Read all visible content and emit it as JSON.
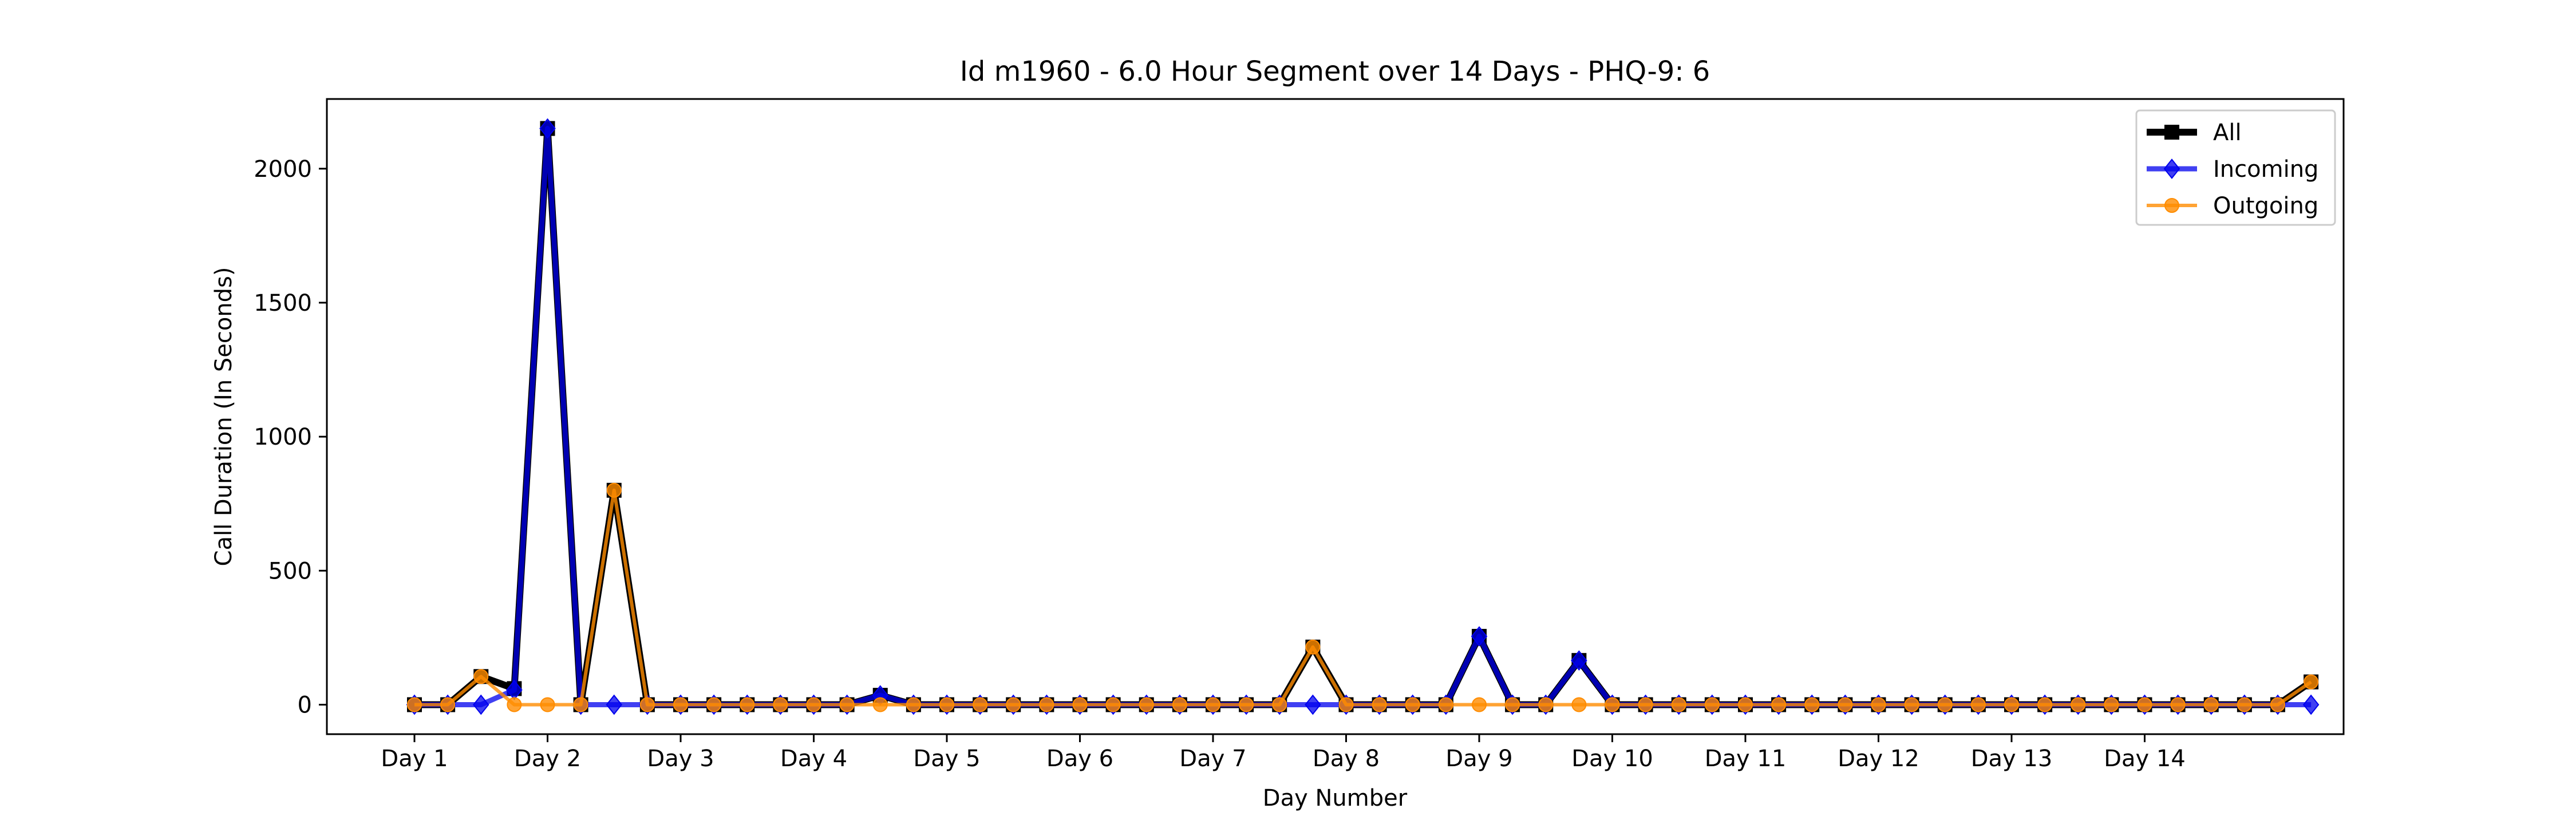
{
  "chart_data": {
    "type": "line",
    "title": "Id m1960 - 6.0 Hour Segment over 14 Days - PHQ-9: 6",
    "xlabel": "Day Number",
    "ylabel": "Call Duration (In Seconds)",
    "x_tick_labels": [
      "Day 1",
      "Day 2",
      "Day 3",
      "Day 4",
      "Day 5",
      "Day 6",
      "Day 7",
      "Day 8",
      "Day 9",
      "Day 10",
      "Day 11",
      "Day 12",
      "Day 13",
      "Day 14"
    ],
    "y_ticks": [
      0,
      500,
      1000,
      1500,
      2000
    ],
    "ylim": [
      -110,
      2260
    ],
    "x_points_per_day": 4,
    "grid": false,
    "legend_position": "upper right",
    "series": [
      {
        "name": "All",
        "color": "#000000",
        "marker": "square",
        "values": [
          0,
          0,
          105,
          60,
          2150,
          0,
          800,
          0,
          0,
          0,
          0,
          0,
          0,
          0,
          35,
          0,
          0,
          0,
          0,
          0,
          0,
          0,
          0,
          0,
          0,
          0,
          0,
          215,
          0,
          0,
          0,
          0,
          255,
          0,
          0,
          165,
          0,
          0,
          0,
          0,
          0,
          0,
          0,
          0,
          0,
          0,
          0,
          0,
          0,
          0,
          0,
          0,
          0,
          0,
          0,
          0,
          0,
          85
        ]
      },
      {
        "name": "Incoming",
        "color": "#0000ee",
        "marker": "diamond",
        "values": [
          0,
          0,
          0,
          55,
          2150,
          0,
          0,
          0,
          0,
          0,
          0,
          0,
          0,
          0,
          35,
          0,
          0,
          0,
          0,
          0,
          0,
          0,
          0,
          0,
          0,
          0,
          0,
          0,
          0,
          0,
          0,
          0,
          255,
          0,
          0,
          165,
          0,
          0,
          0,
          0,
          0,
          0,
          0,
          0,
          0,
          0,
          0,
          0,
          0,
          0,
          0,
          0,
          0,
          0,
          0,
          0,
          0,
          0
        ]
      },
      {
        "name": "Outgoing",
        "color": "#ff8c00",
        "marker": "circle",
        "values": [
          0,
          0,
          105,
          0,
          0,
          0,
          800,
          0,
          0,
          0,
          0,
          0,
          0,
          0,
          0,
          0,
          0,
          0,
          0,
          0,
          0,
          0,
          0,
          0,
          0,
          0,
          0,
          215,
          0,
          0,
          0,
          0,
          0,
          0,
          0,
          0,
          0,
          0,
          0,
          0,
          0,
          0,
          0,
          0,
          0,
          0,
          0,
          0,
          0,
          0,
          0,
          0,
          0,
          0,
          0,
          0,
          0,
          85
        ]
      }
    ]
  }
}
